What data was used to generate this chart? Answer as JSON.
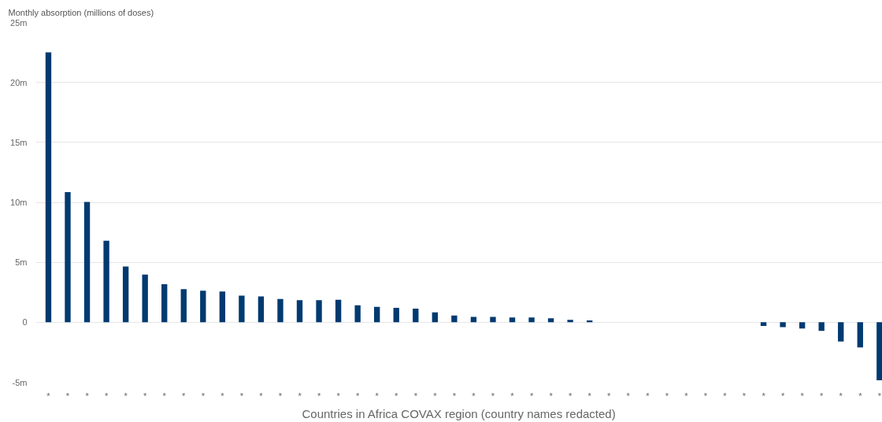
{
  "chart_data": {
    "type": "bar",
    "ylabel": "Monthly absorption (millions of doses)",
    "xlabel": "Countries in Africa COVAX region (country names redacted)",
    "categories": [
      "*",
      "*",
      "*",
      "*",
      "*",
      "*",
      "*",
      "*",
      "*",
      "*",
      "*",
      "*",
      "*",
      "*",
      "*",
      "*",
      "*",
      "*",
      "*",
      "*",
      "*",
      "*",
      "*",
      "*",
      "*",
      "*",
      "*",
      "*",
      "*",
      "*",
      "*",
      "*",
      "*",
      "*",
      "*",
      "*",
      "*",
      "*",
      "*",
      "*",
      "*",
      "*",
      "*",
      "*"
    ],
    "series": [
      {
        "color": "#003a70",
        "values": [
          22.5,
          10.85,
          10.04,
          6.8,
          4.65,
          3.98,
          3.17,
          2.76,
          2.63,
          2.56,
          2.22,
          2.16,
          1.95,
          1.85,
          1.85,
          1.87,
          1.41,
          1.28,
          1.2,
          1.13,
          0.83,
          0.57,
          0.45,
          0.45,
          0.4,
          0.4,
          0.33,
          0.2,
          0.15,
          0,
          0,
          0,
          0,
          0,
          0,
          0,
          0,
          -0.3,
          -0.4,
          -0.52,
          -0.72,
          -1.6,
          -2.1,
          -4.83
        ]
      }
    ],
    "ylim": [
      -5,
      25
    ],
    "yticks": [
      {
        "value": -5,
        "label": "-5m"
      },
      {
        "value": 0,
        "label": "0"
      },
      {
        "value": 5,
        "label": "5m"
      },
      {
        "value": 10,
        "label": "10m"
      },
      {
        "value": 15,
        "label": "15m"
      },
      {
        "value": 20,
        "label": "20m"
      },
      {
        "value": 25,
        "label": "25m"
      }
    ],
    "grid": "y"
  }
}
